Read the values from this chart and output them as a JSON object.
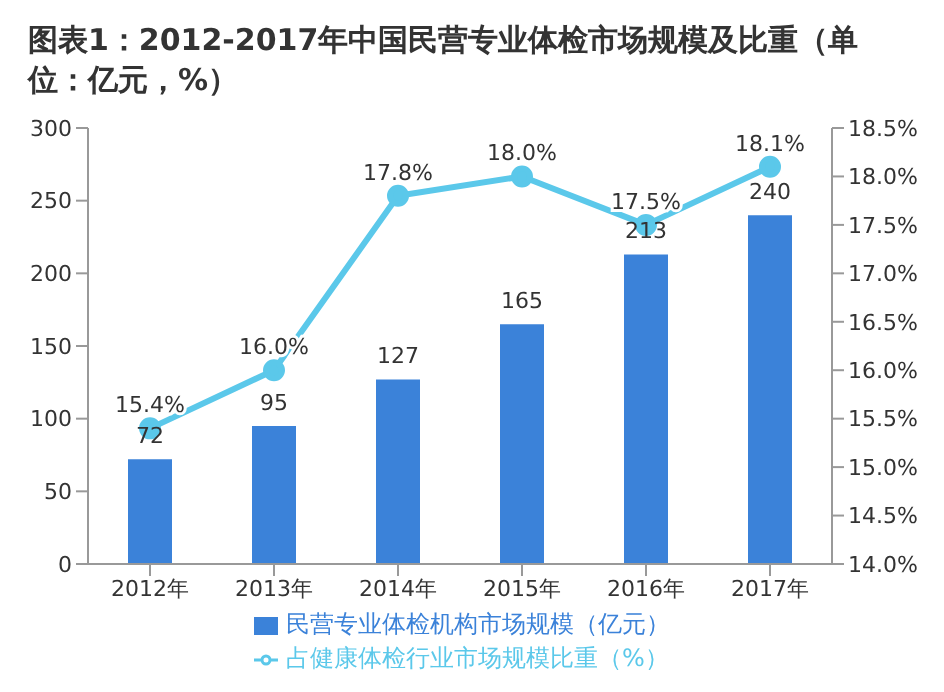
{
  "chart_data": {
    "type": "bar",
    "title": "图表1：2012-2017年中国民营专业体检市场规模及比重（单位：亿元，%）",
    "categories": [
      "2012年",
      "2013年",
      "2014年",
      "2015年",
      "2016年",
      "2017年"
    ],
    "series": [
      {
        "name": "民营专业体检机构市场规模（亿元）",
        "color": "#3b82d9",
        "values": [
          72,
          95,
          127,
          165,
          213,
          240
        ],
        "value_labels": [
          "72",
          "95",
          "127",
          "165",
          "213",
          "240"
        ]
      },
      {
        "name": "占健康体检行业市场规模比重（%）",
        "type": "line",
        "axis": "y2",
        "color": "#5bc8ea",
        "values": [
          15.4,
          16.0,
          17.8,
          18.0,
          17.5,
          18.1
        ],
        "value_labels": [
          "15.4%",
          "16.0%",
          "17.8%",
          "18.0%",
          "17.5%",
          "18.1%"
        ]
      }
    ],
    "ylim": [
      0,
      300
    ],
    "yticks": [
      0,
      50,
      100,
      150,
      200,
      250,
      300
    ],
    "y2lim": [
      14,
      18.5
    ],
    "y2ticks": [
      {
        "value": 14,
        "label": "14.0%"
      },
      {
        "value": 14.5,
        "label": "14.5%"
      },
      {
        "value": 15,
        "label": "15.0%"
      },
      {
        "value": 15.5,
        "label": "15.5%"
      },
      {
        "value": 16,
        "label": "16.0%"
      },
      {
        "value": 16.5,
        "label": "16.5%"
      },
      {
        "value": 17,
        "label": "17.0%"
      },
      {
        "value": 17.5,
        "label": "17.5%"
      },
      {
        "value": 18,
        "label": "18.0%"
      },
      {
        "value": 18.5,
        "label": "18.5%"
      }
    ],
    "marker": "circle",
    "legend": "bottom",
    "grid": false
  }
}
